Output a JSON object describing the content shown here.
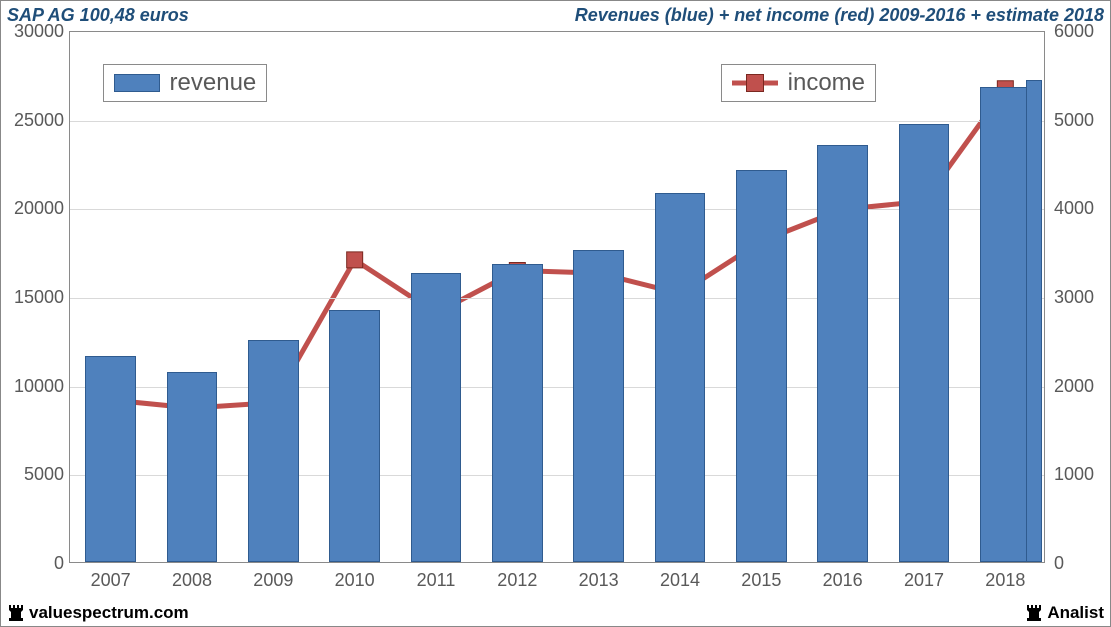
{
  "title_left": "SAP AG 100,48 euros",
  "title_right": "Revenues (blue) + net income (red) 2009-2016 + estimate 2018",
  "footer_left": "valuespectrum.com",
  "footer_right": "Analist",
  "chart": {
    "type": "bar+line-dual-axis",
    "categories": [
      "2007",
      "2008",
      "2009",
      "2010",
      "2011",
      "2012",
      "2013",
      "2014",
      "2015",
      "2016",
      "2017",
      "2018"
    ],
    "bars": {
      "label": "revenue",
      "values": [
        11600,
        10700,
        12500,
        14200,
        16300,
        16800,
        17600,
        20800,
        22100,
        23500,
        24700,
        26800
      ],
      "overlay_last": {
        "index_from": 11,
        "value": 27200
      },
      "color": "#4f81bd",
      "border_color": "#2f5b8f",
      "bar_width_ratio": 0.62
    },
    "line": {
      "label": "income",
      "values": [
        1850,
        1760,
        1820,
        3430,
        2830,
        3310,
        3280,
        3050,
        3640,
        4000,
        4090,
        5360
      ],
      "color": "#c0504d",
      "marker_fill": "#c0504d",
      "marker_border": "#7a2820",
      "line_width": 5,
      "marker_size": 16
    },
    "left_axis": {
      "min": 0,
      "max": 30000,
      "step": 5000
    },
    "right_axis": {
      "min": 0,
      "max": 6000,
      "step": 1000
    },
    "grid_color": "#d9d9d9",
    "axis_text_color": "#595959",
    "legend_bar_pos": {
      "x_cat_index": 0.4,
      "y_left_value": 28200
    },
    "legend_line_pos": {
      "x_cat_index": 8.0,
      "y_left_value": 28200
    }
  }
}
